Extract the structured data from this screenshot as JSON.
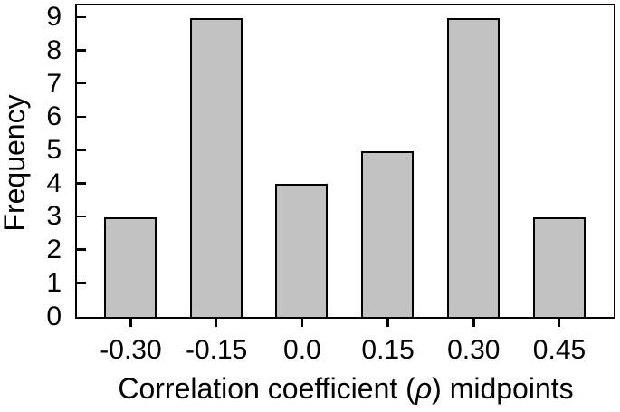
{
  "figure": {
    "background": "#ffffff",
    "axis_color": "#000000",
    "bar_fill": "#c2c2c2",
    "bar_stroke": "#000000"
  },
  "chart_data": {
    "type": "bar",
    "title": "",
    "categories": [
      "-0.30",
      "-0.15",
      "0.0",
      "0.15",
      "0.30",
      "0.45"
    ],
    "values": [
      3,
      9,
      4,
      5,
      9,
      3
    ],
    "xlabel": "Correlation coefficient (ρ) midpoints",
    "xlabel_parts": {
      "pre": "Correlation coefficient (",
      "symbol": "ρ",
      "post": ") midpoints"
    },
    "ylabel": "Frequency",
    "yticks": [
      0,
      1,
      2,
      3,
      4,
      5,
      6,
      7,
      8,
      9
    ],
    "ylim": [
      0,
      9.35
    ],
    "grid": false,
    "legend": "none",
    "tick_style": {
      "y_ticks": "inside",
      "x_ticks": "outside",
      "box": true
    }
  }
}
